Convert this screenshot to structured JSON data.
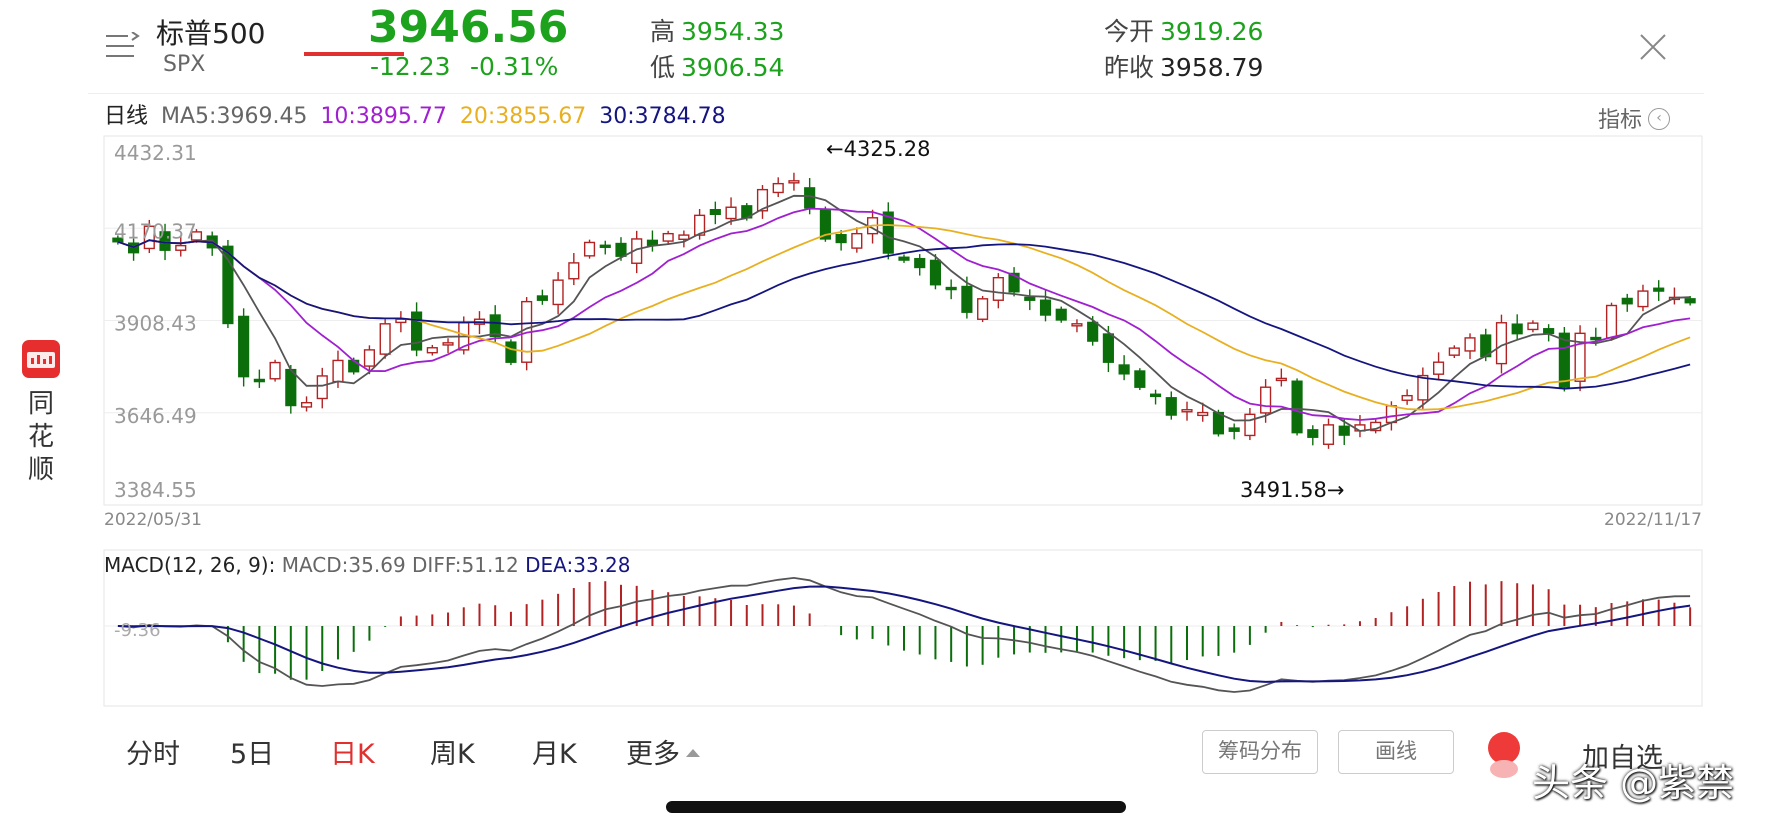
{
  "header": {
    "name": "标普500",
    "code": "SPX",
    "price": "3946.56",
    "change": "-12.23",
    "change_pct": "-0.31%",
    "high_label": "高",
    "high": "3954.33",
    "low_label": "低",
    "low": "3906.54",
    "open_label": "今开",
    "open": "3919.26",
    "prev_close_label": "昨收",
    "prev_close": "3958.79",
    "menu_icon": "menu-icon",
    "close_icon": "close-icon"
  },
  "ma_legend": {
    "period": "日线",
    "ma5": "MA5:3969.45",
    "ma10": "10:3895.77",
    "ma20": "20:3855.67",
    "ma30": "30:3784.78",
    "indicator": "指标"
  },
  "colors": {
    "up": "#b22222",
    "down": "#0b6e0b",
    "green_text": "#1ca21c",
    "ma5": "#555555",
    "ma10": "#a020d0",
    "ma20": "#e8b020",
    "ma30": "#151580",
    "accent": "#e03030"
  },
  "chart_data": [
    {
      "type": "candlestick",
      "title": "",
      "y_ticks": [
        "4432.31",
        "4170.37",
        "3908.43",
        "3646.49",
        "3384.55"
      ],
      "ylim": [
        3384.55,
        4432.31
      ],
      "x_start": "2022/05/31",
      "x_end": "2022/11/17",
      "annotations": [
        {
          "text": "←4325.28",
          "value": 4325.28
        },
        {
          "text": "3491.58→",
          "value": 3491.58
        }
      ],
      "closes": [
        4132,
        4101,
        4176,
        4108,
        4121,
        4160,
        4115,
        3900,
        3749,
        3735,
        3789,
        3667,
        3675,
        3751,
        3795,
        3763,
        3825,
        3899,
        3912,
        3825,
        3831,
        3845,
        3902,
        3912,
        3863,
        3790,
        3962,
        3966,
        4023,
        4072,
        4130,
        4119,
        4091,
        4140,
        4122,
        4155,
        4151,
        4207,
        4210,
        4230,
        4200,
        4280,
        4297,
        4305,
        4228,
        4140,
        4130,
        4155,
        4200,
        4100,
        4080,
        4059,
        4010,
        3997,
        3932,
        3970,
        4030,
        3990,
        3966,
        3924,
        3910,
        3899,
        3850,
        3790,
        3757,
        3719,
        3693,
        3640,
        3655,
        3647,
        3587,
        3594,
        3642,
        3719,
        3744,
        3590,
        3577,
        3612,
        3583,
        3612,
        3619,
        3666,
        3695,
        3752,
        3790,
        3830,
        3859,
        3806,
        3902,
        3871,
        3901,
        3872,
        3720,
        3872,
        3855,
        3951,
        3956,
        3992,
        3992,
        3974,
        3959
      ],
      "ma5_approx": "series drawn",
      "series": [
        {
          "name": "MA5",
          "last": 3969.45
        },
        {
          "name": "MA10",
          "last": 3895.77
        },
        {
          "name": "MA20",
          "last": 3855.67
        },
        {
          "name": "MA30",
          "last": 3784.78
        }
      ]
    },
    {
      "type": "bar",
      "title": "MACD(12, 26, 9):",
      "macd_label": "MACD:35.69",
      "diff_label": "DIFF:51.12",
      "dea_label": "DEA:33.28",
      "y_tick": "-9.36",
      "series": [
        {
          "name": "MACD",
          "last": 35.69
        },
        {
          "name": "DIFF",
          "last": 51.12
        },
        {
          "name": "DEA",
          "last": 33.28
        }
      ]
    }
  ],
  "sidebar": {
    "app_name_1": "同",
    "app_name_2": "花",
    "app_name_3": "顺"
  },
  "tabs": {
    "t1": "分时",
    "t2": "5日",
    "t3": "日K",
    "t4": "周K",
    "t5": "月K",
    "t6": "更多"
  },
  "buttons": {
    "chips": "筹码分布",
    "draw": "画线",
    "fav": "加自选"
  },
  "watermark": "头条 @紫禁"
}
